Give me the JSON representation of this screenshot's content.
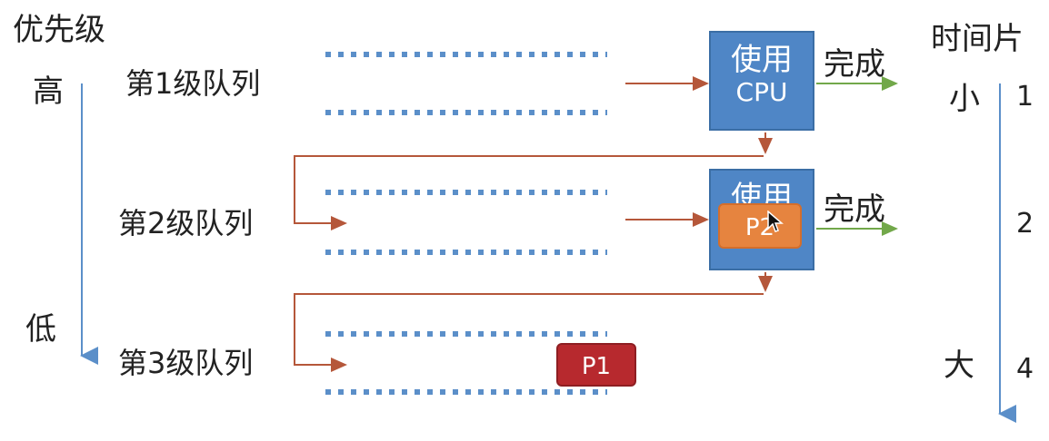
{
  "priority": {
    "title": "优先级",
    "high": "高",
    "low": "低"
  },
  "timeslice": {
    "title": "时间片",
    "small": "小",
    "large": "大",
    "values": [
      "1",
      "2",
      "4"
    ]
  },
  "queues": [
    {
      "label": "第1级队列"
    },
    {
      "label": "第2级队列"
    },
    {
      "label": "第3级队列"
    }
  ],
  "cpu": {
    "line1": "使用",
    "line2": "CPU"
  },
  "done_label": "完成",
  "processes": {
    "p1": "P1",
    "p2": "P2"
  },
  "colors": {
    "axis": "#5b8fc9",
    "cpu_fill": "#4f86c6",
    "arrow_red": "#b5573a",
    "arrow_green": "#72a84a",
    "queue_dots": "#5b8fc9",
    "p1_fill": "#b7292e",
    "p2_fill": "#e6843f"
  }
}
